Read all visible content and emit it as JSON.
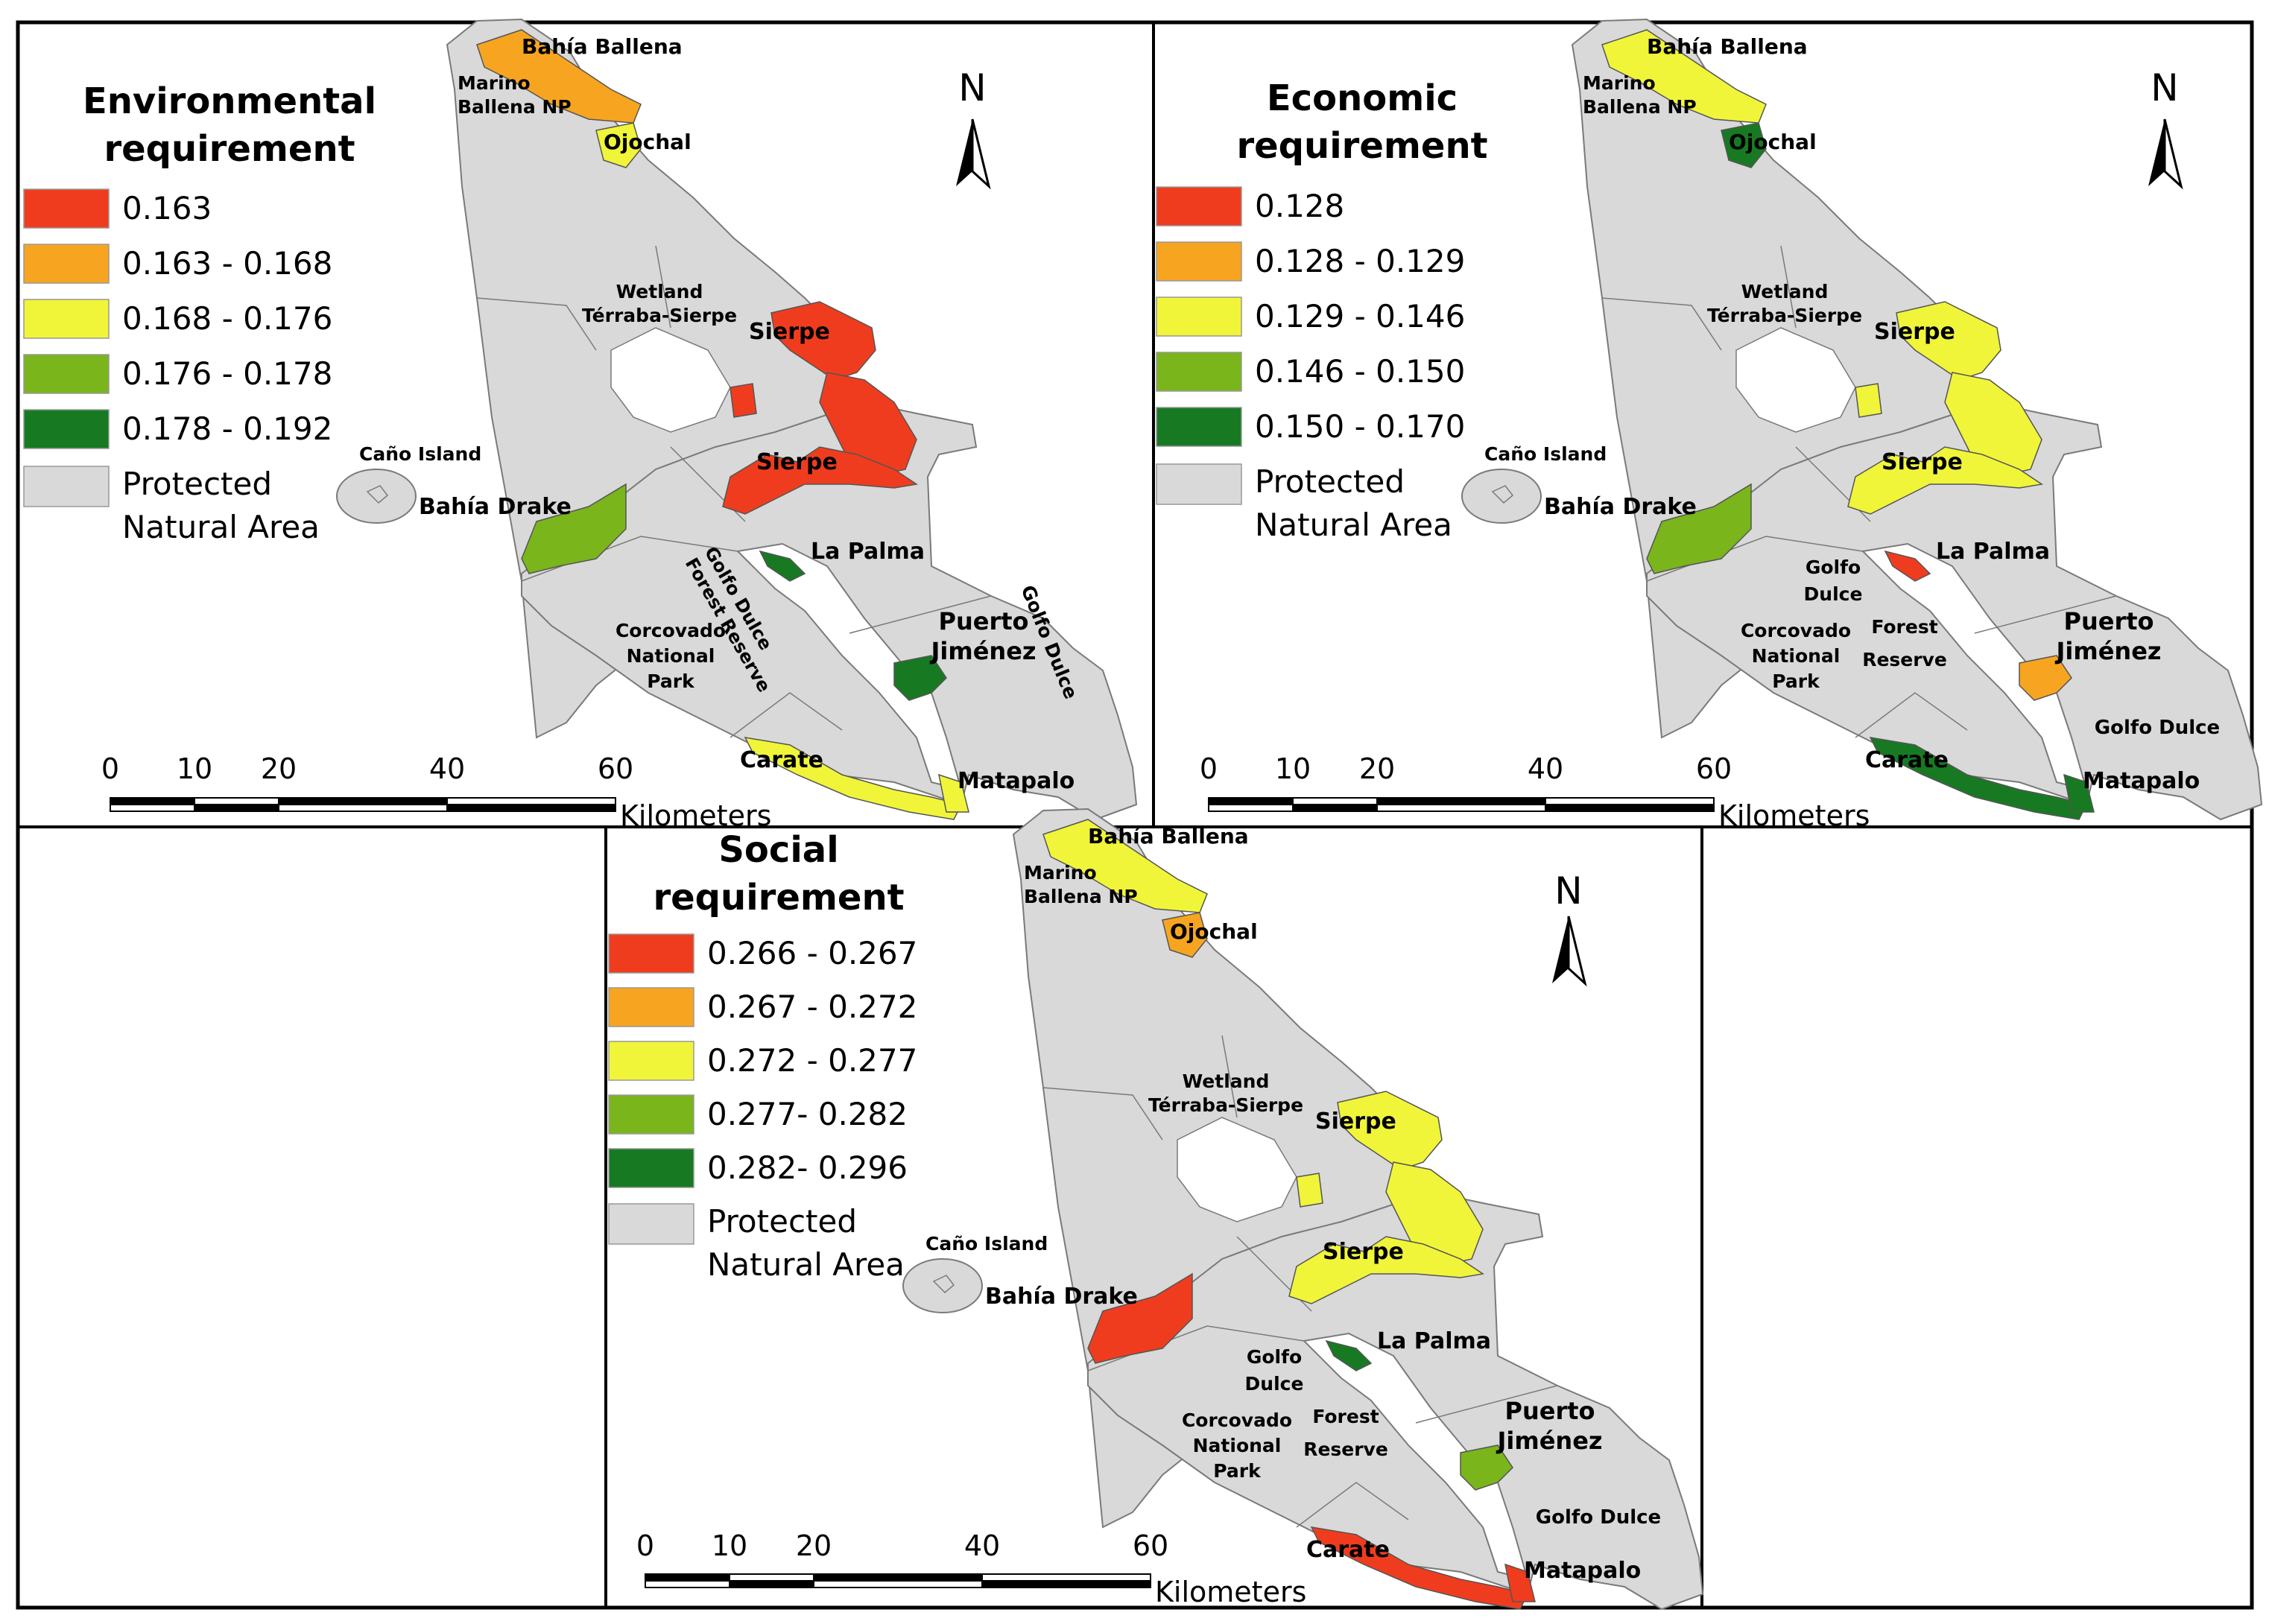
{
  "colors": {
    "c1": "#f03c1e",
    "c2": "#f7a521",
    "c3": "#f0f53a",
    "c4": "#7ab51c",
    "c5": "#177a22",
    "protected": "#d9d9d9",
    "frame": "#000000"
  },
  "north_label": "N",
  "scale": {
    "ticks": [
      "0",
      "10",
      "20",
      "40",
      "60"
    ],
    "unit": "Kilometers"
  },
  "legend_protected": [
    "Protected",
    "Natural Area"
  ],
  "panels": [
    {
      "title": [
        "Environmental",
        "requirement"
      ],
      "classes": [
        "0.163",
        "0.163 - 0.168",
        "0.168 - 0.176",
        "0.176 - 0.178",
        "0.178 - 0.192"
      ],
      "places": {
        "bahia_ballena": "Bahía Ballena",
        "marino_ballena": [
          "Marino",
          "Ballena NP"
        ],
        "ojochal": "Ojochal",
        "wetland": [
          "Wetland",
          "Térraba-Sierpe"
        ],
        "sierpe_n": "Sierpe",
        "sierpe_s": "Sierpe",
        "cano": "Caño Island",
        "drake": "Bahía Drake",
        "la_palma": "La Palma",
        "gd_reserve": [
          "Golfo Dulce",
          "Forest Reserve"
        ],
        "corcovado": [
          "Corcovado",
          "National",
          "Park"
        ],
        "puerto": [
          "Puerto",
          "Jiménez"
        ],
        "golfo_dulce": "Golfo Dulce",
        "carate": "Carate",
        "matapalo": "Matapalo"
      }
    },
    {
      "title": [
        "Economic",
        "requirement"
      ],
      "classes": [
        "0.128",
        "0.128 - 0.129",
        "0.129 - 0.146",
        "0.146 - 0.150",
        "0.150 - 0.170"
      ],
      "places": {
        "bahia_ballena": "Bahía Ballena",
        "marino_ballena": [
          "Marino",
          "Ballena NP"
        ],
        "ojochal": "Ojochal",
        "wetland": [
          "Wetland",
          "Térraba-Sierpe"
        ],
        "sierpe_n": "Sierpe",
        "sierpe_s": "Sierpe",
        "cano": "Caño Island",
        "drake": "Bahía Drake",
        "la_palma": "La Palma",
        "gd_reserve": [
          "Golfo",
          "Dulce",
          "Forest",
          "Reserve"
        ],
        "corcovado": [
          "Corcovado",
          "National",
          "Park"
        ],
        "puerto": [
          "Puerto",
          "Jiménez"
        ],
        "golfo_dulce": "Golfo Dulce",
        "carate": "Carate",
        "matapalo": "Matapalo"
      }
    },
    {
      "title": [
        "Social",
        "requirement"
      ],
      "classes": [
        "0.266 - 0.267",
        "0.267 - 0.272",
        "0.272 - 0.277",
        "0.277- 0.282",
        "0.282- 0.296"
      ],
      "places": {
        "bahia_ballena": "Bahía Ballena",
        "marino_ballena": [
          "Marino",
          "Ballena NP"
        ],
        "ojochal": "Ojochal",
        "wetland": [
          "Wetland",
          "Térraba-Sierpe"
        ],
        "sierpe_n": "Sierpe",
        "sierpe_s": "Sierpe",
        "cano": "Caño Island",
        "drake": "Bahía Drake",
        "la_palma": "La Palma",
        "gd_reserve": [
          "Golfo",
          "Dulce",
          "Forest",
          "Reserve"
        ],
        "corcovado": [
          "Corcovado",
          "National",
          "Park"
        ],
        "puerto": [
          "Puerto",
          "Jiménez"
        ],
        "golfo_dulce": "Golfo Dulce",
        "carate": "Carate",
        "matapalo": "Matapalo"
      }
    }
  ]
}
